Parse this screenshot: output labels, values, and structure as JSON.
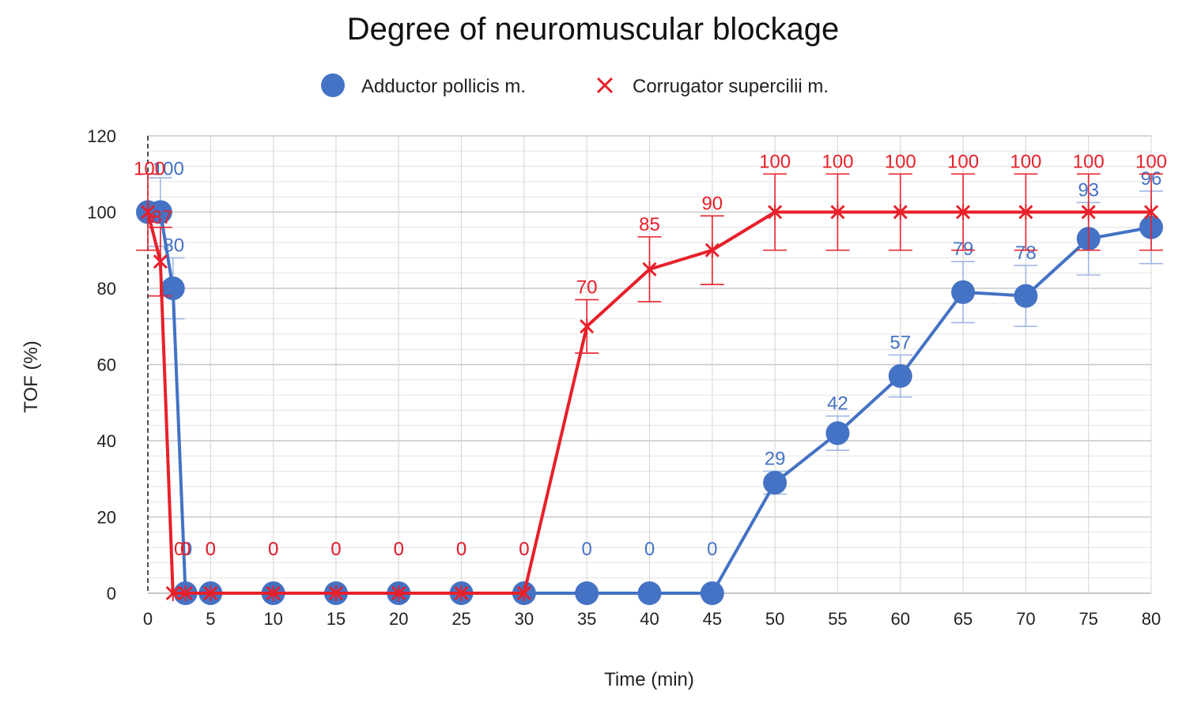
{
  "chart_data": {
    "type": "line",
    "title": "Degree of neuromuscular blockage",
    "xlabel": "Time (min)",
    "ylabel": "TOF (%)",
    "xlim": [
      0,
      80
    ],
    "ylim": [
      0,
      120
    ],
    "x_ticks": [
      "0",
      "5",
      "10",
      "15",
      "20",
      "25",
      "30",
      "35",
      "40",
      "45",
      "50",
      "55",
      "60",
      "65",
      "70",
      "75",
      "80"
    ],
    "y_ticks": [
      "0",
      "20",
      "40",
      "60",
      "80",
      "100",
      "120"
    ],
    "grid": true,
    "legend_position": "top",
    "series": [
      {
        "name": "Adductor pollicis m.",
        "color": "#4472c4",
        "marker": "circle",
        "x": [
          0,
          1,
          2,
          3,
          5,
          10,
          15,
          20,
          25,
          30,
          35,
          40,
          45,
          50,
          55,
          60,
          65,
          70,
          75,
          80
        ],
        "y": [
          100,
          100,
          80,
          0,
          0,
          0,
          0,
          0,
          0,
          0,
          0,
          0,
          0,
          29,
          42,
          57,
          79,
          78,
          93,
          96
        ],
        "err": [
          0,
          9,
          8,
          0,
          0,
          0,
          0,
          0,
          0,
          0,
          0,
          0,
          0,
          3,
          4.5,
          5.5,
          8,
          8,
          9.5,
          9.5
        ],
        "labels": [
          "",
          "100",
          "80",
          "0",
          "0",
          "0",
          "0",
          "0",
          "0",
          "0",
          "0",
          "0",
          "0",
          "29",
          "42",
          "57",
          "79",
          "78",
          "93",
          "96"
        ]
      },
      {
        "name": "Corrugator supercilii m.",
        "color": "#e8202a",
        "marker": "star",
        "x": [
          0,
          1,
          2,
          3,
          5,
          10,
          15,
          20,
          25,
          30,
          35,
          40,
          45,
          50,
          55,
          60,
          65,
          70,
          75,
          80
        ],
        "y": [
          100,
          87,
          0,
          0,
          0,
          0,
          0,
          0,
          0,
          0,
          70,
          85,
          90,
          100,
          100,
          100,
          100,
          100,
          100,
          100
        ],
        "err": [
          10,
          9,
          0,
          0,
          0,
          0,
          0,
          0,
          0,
          0,
          7,
          8.5,
          9,
          10,
          10,
          10,
          10,
          10,
          10,
          10
        ],
        "labels": [
          "100",
          "87",
          "0",
          "0",
          "0",
          "0",
          "0",
          "0",
          "0",
          "0",
          "70",
          "85",
          "90",
          "100",
          "100",
          "100",
          "100",
          "100",
          "100",
          "100"
        ]
      }
    ]
  }
}
